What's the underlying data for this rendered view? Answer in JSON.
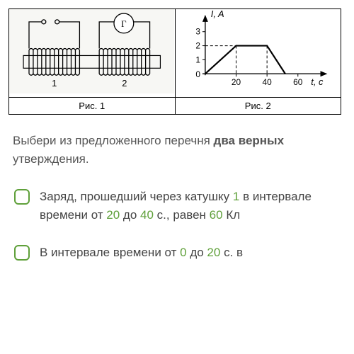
{
  "figure": {
    "cap1": "Рис. 1",
    "cap2": "Рис. 2",
    "circuit": {
      "coil1_label": "1",
      "coil2_label": "2",
      "meter_label": "Г",
      "line_color": "#000000",
      "bg_color": "#f7f7f4"
    },
    "graph": {
      "ylabel": "I, A",
      "xlabel": "t, с",
      "yticks": [
        "1",
        "2",
        "3"
      ],
      "xticks": [
        "20",
        "40",
        "60"
      ],
      "axis_color": "#000000",
      "dash_color": "#000000",
      "line_color": "#000000",
      "points": [
        [
          0,
          0
        ],
        [
          20,
          2
        ],
        [
          40,
          2
        ],
        [
          52,
          0
        ]
      ],
      "ylim": [
        0,
        3.5
      ],
      "xlim": [
        0,
        70
      ]
    }
  },
  "question": {
    "pre": "Выбери из предложенного перечня ",
    "bold": "два верных",
    "post": " утверждения."
  },
  "accent": "#5fa03a",
  "options": [
    {
      "parts": [
        {
          "t": "Заряд, прошедший через катушку "
        },
        {
          "t": "1",
          "hl": true
        },
        {
          "t": " в интервале времени от "
        },
        {
          "t": "20",
          "hl": true
        },
        {
          "t": " до "
        },
        {
          "t": "40",
          "hl": true
        },
        {
          "t": " с., равен "
        },
        {
          "t": "60",
          "hl": true
        },
        {
          "t": " Кл"
        }
      ]
    },
    {
      "parts": [
        {
          "t": "В интервале времени от "
        },
        {
          "t": "0",
          "hl": true
        },
        {
          "t": " до "
        },
        {
          "t": "20",
          "hl": true
        },
        {
          "t": " с. в"
        }
      ]
    }
  ]
}
